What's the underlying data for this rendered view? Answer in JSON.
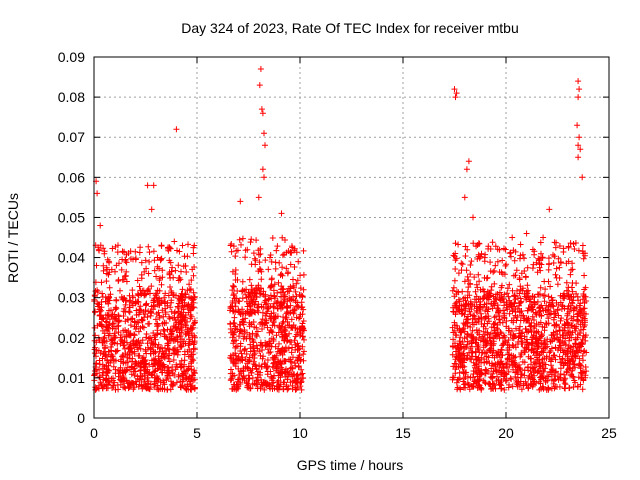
{
  "chart_data": {
    "type": "scatter",
    "title": "Day 324 of 2023, Rate Of TEC Index for receiver mtbu",
    "xlabel": "GPS time / hours",
    "ylabel": "ROTI / TECUs",
    "xlim": [
      0,
      25
    ],
    "ylim": [
      0,
      0.09
    ],
    "x_ticks": [
      "0",
      "5",
      "10",
      "15",
      "20",
      "25"
    ],
    "y_ticks": [
      "0",
      "0.01",
      "0.02",
      "0.03",
      "0.04",
      "0.05",
      "0.06",
      "0.07",
      "0.08",
      "0.09"
    ],
    "grid": true,
    "legend": "none",
    "marker": "+",
    "color": "#ff0000",
    "segments": [
      {
        "x_range": [
          0.0,
          4.9
        ],
        "typical_range": [
          0.007,
          0.032
        ]
      },
      {
        "x_range": [
          6.6,
          10.2
        ],
        "typical_range": [
          0.007,
          0.033
        ]
      },
      {
        "x_range": [
          17.4,
          23.9
        ],
        "typical_range": [
          0.007,
          0.032
        ]
      }
    ],
    "peaks": [
      {
        "x": 0.1,
        "y": 0.059
      },
      {
        "x": 0.15,
        "y": 0.056
      },
      {
        "x": 0.3,
        "y": 0.048
      },
      {
        "x": 2.6,
        "y": 0.058
      },
      {
        "x": 2.9,
        "y": 0.058
      },
      {
        "x": 2.8,
        "y": 0.052
      },
      {
        "x": 4.0,
        "y": 0.072
      },
      {
        "x": 3.9,
        "y": 0.044
      },
      {
        "x": 7.1,
        "y": 0.054
      },
      {
        "x": 8.1,
        "y": 0.087
      },
      {
        "x": 8.05,
        "y": 0.083
      },
      {
        "x": 8.15,
        "y": 0.077
      },
      {
        "x": 8.2,
        "y": 0.076
      },
      {
        "x": 8.25,
        "y": 0.071
      },
      {
        "x": 8.3,
        "y": 0.068
      },
      {
        "x": 8.2,
        "y": 0.062
      },
      {
        "x": 8.25,
        "y": 0.06
      },
      {
        "x": 8.0,
        "y": 0.055
      },
      {
        "x": 9.1,
        "y": 0.051
      },
      {
        "x": 17.5,
        "y": 0.082
      },
      {
        "x": 17.55,
        "y": 0.08
      },
      {
        "x": 17.6,
        "y": 0.081
      },
      {
        "x": 18.2,
        "y": 0.064
      },
      {
        "x": 18.1,
        "y": 0.062
      },
      {
        "x": 18.0,
        "y": 0.055
      },
      {
        "x": 18.4,
        "y": 0.05
      },
      {
        "x": 22.1,
        "y": 0.052
      },
      {
        "x": 23.5,
        "y": 0.084
      },
      {
        "x": 23.55,
        "y": 0.082
      },
      {
        "x": 23.5,
        "y": 0.08
      },
      {
        "x": 23.45,
        "y": 0.073
      },
      {
        "x": 23.55,
        "y": 0.07
      },
      {
        "x": 23.5,
        "y": 0.068
      },
      {
        "x": 23.6,
        "y": 0.067
      },
      {
        "x": 23.5,
        "y": 0.065
      },
      {
        "x": 23.7,
        "y": 0.06
      },
      {
        "x": 20.3,
        "y": 0.045
      },
      {
        "x": 21.0,
        "y": 0.046
      },
      {
        "x": 21.8,
        "y": 0.045
      }
    ]
  }
}
